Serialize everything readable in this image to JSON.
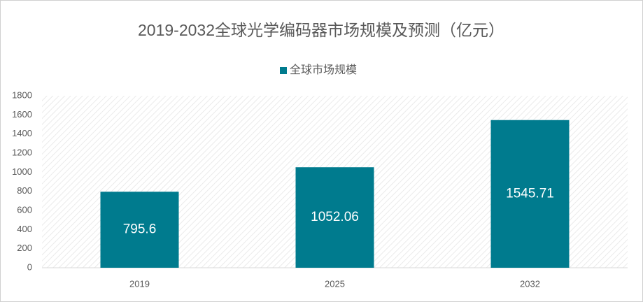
{
  "chart_data": {
    "type": "bar",
    "title": "2019-2032全球光学编码器市场规模及预测（亿元）",
    "categories": [
      "2019",
      "2025",
      "2032"
    ],
    "series": [
      {
        "name": "全球市场规模",
        "color": "#007b8e",
        "values": [
          795.6,
          1052.06,
          1545.71
        ]
      }
    ],
    "ylim": [
      0,
      1800
    ],
    "yticks": [
      0,
      200,
      400,
      600,
      800,
      1000,
      1200,
      1400,
      1600,
      1800
    ],
    "grid": false,
    "legend": "top"
  }
}
